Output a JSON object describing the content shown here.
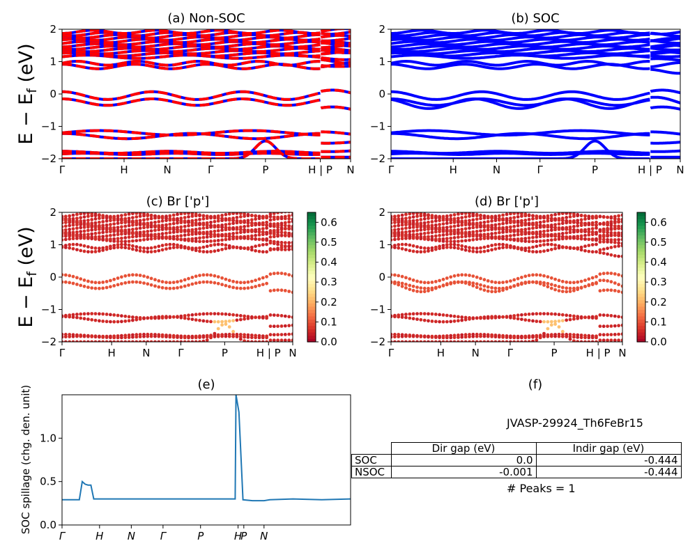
{
  "colors": {
    "nonsoc_a": "#ff0000",
    "nonsoc_b": "#0000ff",
    "soc": "#0000ff",
    "spillage": "#1f77b4",
    "colormap": "RdYlGn"
  },
  "ylabel_text": "E − E",
  "ylabel_sub": "f",
  "ylabel_unit": " (eV)",
  "kpath_labels": [
    "Γ",
    "H",
    "N",
    "Γ",
    "P",
    "H | P",
    "N"
  ],
  "chart_data": [
    {
      "id": "a",
      "type": "line",
      "title": "(a) Non-SOC",
      "ylim": [
        -2,
        2
      ],
      "yticks": [
        "−2",
        "−1",
        "0",
        "1",
        "2"
      ],
      "xticks": [
        "Γ",
        "H",
        "N",
        "Γ",
        "P",
        "H | P",
        "N"
      ],
      "series": [
        {
          "values": "bands"
        }
      ]
    },
    {
      "id": "b",
      "type": "line",
      "title": "(b) SOC",
      "ylim": [
        -2,
        2
      ],
      "yticks": [
        "−2",
        "−1",
        "0",
        "1",
        "2"
      ],
      "xticks": [
        "Γ",
        "H",
        "N",
        "Γ",
        "P",
        "H | P",
        "N"
      ]
    },
    {
      "id": "c",
      "type": "scatter",
      "title": "(c)  Br ['p']",
      "ylim": [
        -2,
        2
      ],
      "yticks": [
        "−2",
        "−1",
        "0",
        "1",
        "2"
      ],
      "xticks": [
        "Γ",
        "H",
        "N",
        "Γ",
        "P",
        "H | P",
        "N"
      ],
      "colorbar": {
        "range": [
          0,
          0.65
        ],
        "ticks": [
          "0.0",
          "0.1",
          "0.2",
          "0.3",
          "0.4",
          "0.5",
          "0.6"
        ]
      }
    },
    {
      "id": "d",
      "type": "scatter",
      "title": "(d) Br ['p']",
      "ylim": [
        -2,
        2
      ],
      "yticks": [
        "−2",
        "−1",
        "0",
        "1",
        "2"
      ],
      "xticks": [
        "Γ",
        "H",
        "N",
        "Γ",
        "P",
        "H | P",
        "N"
      ],
      "colorbar": {
        "range": [
          0,
          0.65
        ],
        "ticks": [
          "0.0",
          "0.1",
          "0.2",
          "0.3",
          "0.4",
          "0.5",
          "0.6"
        ]
      }
    },
    {
      "id": "e",
      "type": "line",
      "title": "(e)",
      "ylabel": "SOC spillage (chg. den. unit)",
      "ylim": [
        0,
        1.5
      ],
      "yticks": [
        "0.0",
        "0.5",
        "1.0"
      ],
      "yticks_values": [
        0,
        0.5,
        1.0
      ],
      "xticks": [
        "Γ",
        "H",
        "N",
        "Γ",
        "P",
        "H",
        "P",
        "N"
      ],
      "xticks_pos": [
        0,
        0.13,
        0.24,
        0.35,
        0.48,
        0.61,
        0.63,
        0.7
      ],
      "x": [
        0,
        0.06,
        0.07,
        0.08,
        0.09,
        0.1,
        0.11,
        0.2,
        0.4,
        0.5,
        0.6,
        0.603,
        0.613,
        0.627,
        0.66,
        0.7,
        0.72,
        0.8,
        0.9,
        1.0
      ],
      "y": [
        0.29,
        0.29,
        0.5,
        0.47,
        0.46,
        0.46,
        0.3,
        0.3,
        0.3,
        0.3,
        0.3,
        1.5,
        1.3,
        0.29,
        0.28,
        0.28,
        0.29,
        0.3,
        0.29,
        0.3
      ]
    },
    {
      "id": "f",
      "type": "table",
      "title": "(f)",
      "name": "JVASP-29924_Th6FeBr15",
      "columns": [
        "Dir gap (eV)",
        "Indir gap (eV)"
      ],
      "rows": [
        {
          "label": "SOC",
          "dir": "0.0",
          "indir": "-0.444"
        },
        {
          "label": "NSOC",
          "dir": "-0.001",
          "indir": "-0.444"
        }
      ],
      "peaks": "# Peaks = 1"
    }
  ]
}
